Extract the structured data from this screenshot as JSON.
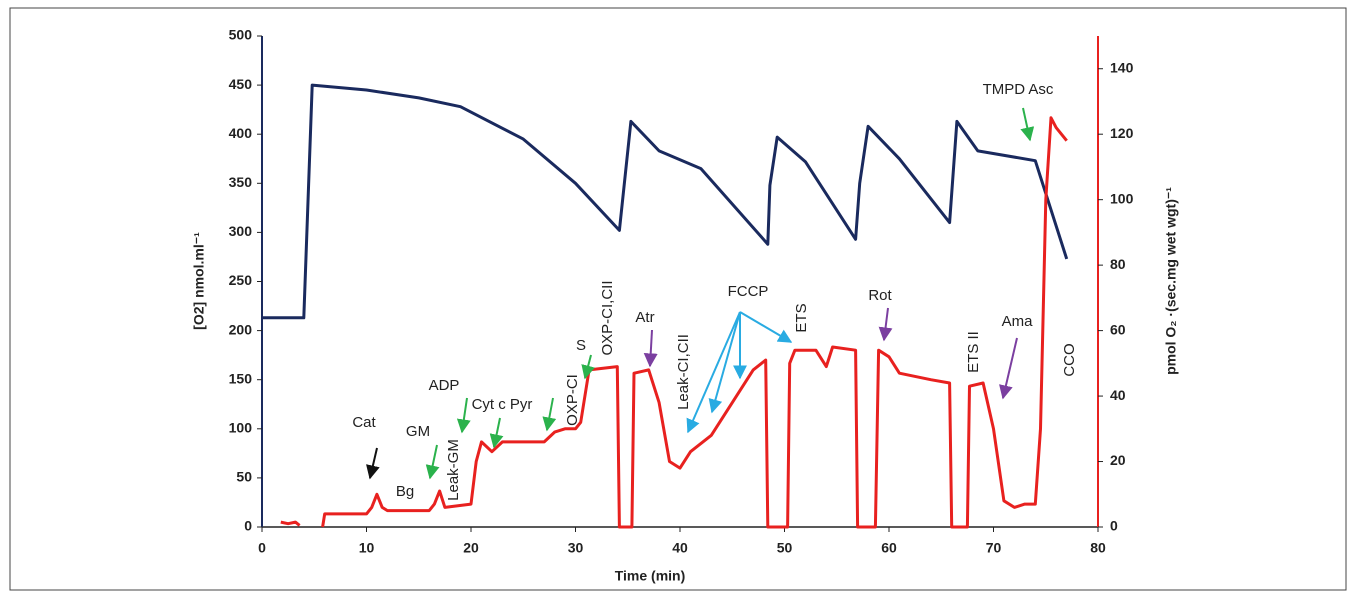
{
  "chart_data": {
    "type": "line",
    "xlabel": "Time (min)",
    "ylabel": "[O2] nmol.ml⁻¹",
    "y2label": "pmol O₂ ·(sec.mg wet wgt)⁻¹",
    "xlim": [
      0,
      80
    ],
    "xticks": [
      0,
      10,
      20,
      30,
      40,
      50,
      60,
      70,
      80
    ],
    "ylim": [
      0,
      500
    ],
    "yticks": [
      0,
      50,
      100,
      150,
      200,
      250,
      300,
      350,
      400,
      450,
      500
    ],
    "y2lim": [
      0,
      150
    ],
    "y2ticks": [
      0,
      20,
      40,
      60,
      80,
      100,
      120,
      140
    ],
    "series": [
      {
        "color": "#1a2a5e",
        "x": [
          0,
          4,
          4.8,
          10,
          15,
          19,
          25,
          30,
          34.2,
          35.3,
          38,
          42,
          48.4,
          48.6,
          49.3,
          52,
          56.8,
          57.2,
          58,
          61,
          65.8,
          66.5,
          68.5,
          74,
          77
        ],
        "values": [
          213,
          213,
          450,
          445,
          437,
          428,
          395,
          350,
          302,
          413,
          383,
          365,
          288,
          348,
          397,
          372,
          293,
          350,
          408,
          375,
          310,
          413,
          383,
          373,
          273
        ]
      },
      {
        "color": "#e8211f",
        "axis": "y2",
        "x": [
          1.8,
          2.5,
          3.2,
          3.6,
          4.5,
          5.8,
          6,
          10,
          10.5,
          11,
          11.5,
          12,
          16,
          16.5,
          17,
          17.5,
          20,
          20.5,
          21,
          22,
          23,
          27,
          28,
          29,
          30,
          30.5,
          31.3,
          34,
          34.2,
          35.4,
          35.6,
          37,
          38,
          39,
          40,
          41,
          43,
          45,
          47,
          48.2,
          48.4,
          50.3,
          50.5,
          51,
          53,
          54,
          54.6,
          56.8,
          57,
          58.7,
          59,
          60,
          61,
          64,
          65.8,
          66,
          67.5,
          67.7,
          69,
          70,
          71,
          72,
          73,
          74,
          74.5,
          75,
          75.5,
          76,
          77
        ],
        "values": [
          1.5,
          1,
          1.5,
          0.5,
          null,
          0,
          4,
          4,
          6,
          10,
          6,
          5,
          5,
          7,
          11,
          6,
          7,
          20,
          26,
          23,
          26,
          26,
          29,
          30,
          30,
          32,
          48,
          49,
          0,
          0,
          47,
          48,
          38,
          20,
          18,
          23,
          28,
          38,
          48,
          51,
          0,
          0,
          50,
          54,
          54,
          49,
          55,
          54,
          0,
          0,
          54,
          52,
          47,
          45,
          44,
          0,
          0,
          43,
          44,
          30,
          8,
          6,
          7,
          7,
          30,
          100,
          125,
          122,
          118
        ]
      }
    ],
    "annotations": [
      "Cat",
      "Bg",
      "GM",
      "Leak-GM",
      "ADP",
      "Cyt c Pyr",
      "OXP-CI",
      "S",
      "OXP-CI,CII",
      "Atr",
      "Leak-CI,CII",
      "FCCP",
      "ETS",
      "Rot",
      "ETS II",
      "Ama",
      "TMPD Asc",
      "CCO"
    ]
  }
}
